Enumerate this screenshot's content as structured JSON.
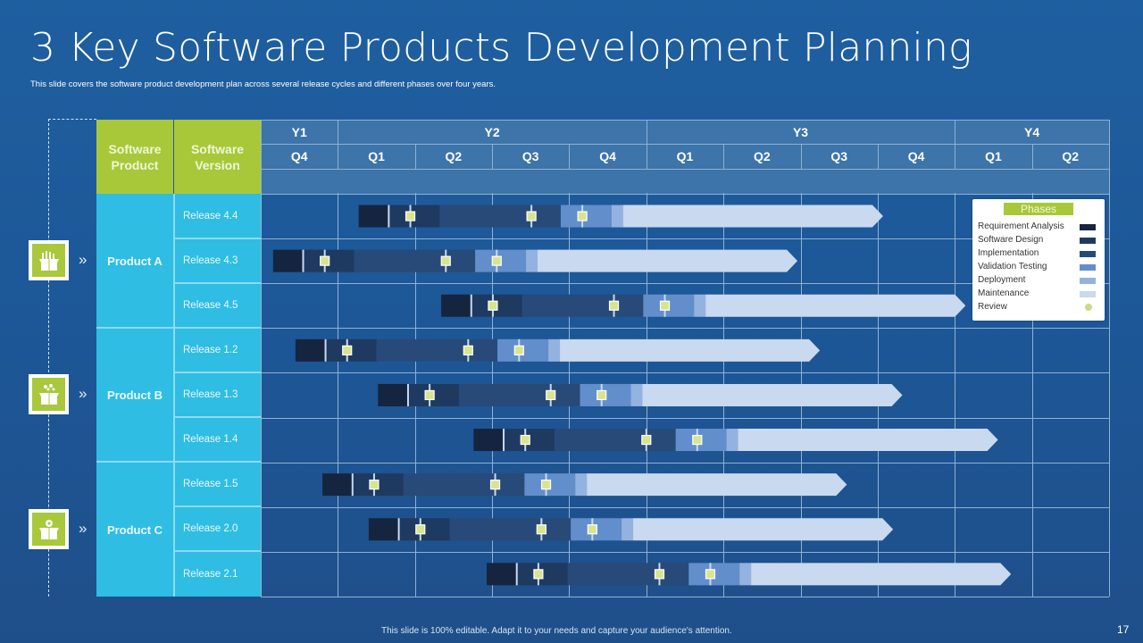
{
  "slide": {
    "title": "3 Key Software Products Development Planning",
    "subtitle": "This slide covers the software product development plan across several release cycles and different phases over four years.",
    "footer": "This slide is 100% editable. Adapt it to your needs and capture your audience's attention.",
    "page_number": "17"
  },
  "table_headers": {
    "product": "Software Product",
    "version": "Software Version"
  },
  "colors": {
    "requirement_analysis": "#152540",
    "software_design": "#1f3a60",
    "implementation": "#284a78",
    "validation_testing": "#628ecb",
    "deployment": "#93b2df",
    "maintenance": "#c9d9ef",
    "review": "#d9e491",
    "header_green": "#a8c83a",
    "cell_cyan": "#2fbde3"
  },
  "chart_data": {
    "type": "gantt",
    "title": "3 Key Software Products Development Planning",
    "years": [
      {
        "label": "Y1",
        "quarters": [
          "Q4"
        ]
      },
      {
        "label": "Y2",
        "quarters": [
          "Q1",
          "Q2",
          "Q3",
          "Q4"
        ]
      },
      {
        "label": "Y3",
        "quarters": [
          "Q1",
          "Q2",
          "Q3",
          "Q4"
        ]
      },
      {
        "label": "Y4",
        "quarters": [
          "Q1",
          "Q2"
        ]
      }
    ],
    "time_unit": "quarters from start of Y1 Q4",
    "axis_range": [
      0,
      11
    ],
    "phases": [
      "Requirement Analysis",
      "Software Design",
      "Implementation",
      "Validation Testing",
      "Deployment",
      "Maintenance",
      "Review"
    ],
    "legend_title": "Phases",
    "legend_position": "top-right",
    "products": [
      {
        "name": "Product A",
        "icon": "gift-box-icon",
        "releases": [
          {
            "version": "Release 4.4",
            "start": 1.27,
            "phase_durations": [
              0.39,
              0.66,
              1.57,
              0.66,
              0.15,
              3.37
            ],
            "reviews": [
              1.94,
              3.51,
              4.17
            ]
          },
          {
            "version": "Release 4.3",
            "start": 0.16,
            "phase_durations": [
              0.39,
              0.66,
              1.57,
              0.66,
              0.15,
              3.37
            ],
            "reviews": [
              0.83,
              2.4,
              3.06
            ]
          },
          {
            "version": "Release 4.5",
            "start": 2.34,
            "phase_durations": [
              0.39,
              0.66,
              1.57,
              0.66,
              0.15,
              3.37
            ],
            "reviews": [
              3.01,
              4.58,
              5.24
            ]
          }
        ]
      },
      {
        "name": "Product B",
        "icon": "gift-box-icon",
        "releases": [
          {
            "version": "Release 1.2",
            "start": 0.45,
            "phase_durations": [
              0.39,
              0.66,
              1.57,
              0.66,
              0.15,
              3.37
            ],
            "reviews": [
              1.12,
              2.69,
              3.35
            ]
          },
          {
            "version": "Release 1.3",
            "start": 1.52,
            "phase_durations": [
              0.39,
              0.66,
              1.57,
              0.66,
              0.15,
              3.37
            ],
            "reviews": [
              2.19,
              3.76,
              4.42
            ]
          },
          {
            "version": "Release 1.4",
            "start": 2.76,
            "phase_durations": [
              0.39,
              0.66,
              1.57,
              0.66,
              0.15,
              3.37
            ],
            "reviews": [
              3.43,
              5.0,
              5.66
            ]
          }
        ]
      },
      {
        "name": "Product C",
        "icon": "gift-box-icon",
        "releases": [
          {
            "version": "Release 1.5",
            "start": 0.8,
            "phase_durations": [
              0.39,
              0.66,
              1.57,
              0.66,
              0.15,
              3.37
            ],
            "reviews": [
              1.47,
              3.04,
              3.7
            ]
          },
          {
            "version": "Release 2.0",
            "start": 1.4,
            "phase_durations": [
              0.39,
              0.66,
              1.57,
              0.66,
              0.15,
              3.37
            ],
            "reviews": [
              2.07,
              3.64,
              4.3
            ]
          },
          {
            "version": "Release 2.1",
            "start": 2.93,
            "phase_durations": [
              0.39,
              0.66,
              1.57,
              0.66,
              0.15,
              3.37
            ],
            "reviews": [
              3.6,
              5.17,
              5.83
            ]
          }
        ]
      }
    ]
  }
}
